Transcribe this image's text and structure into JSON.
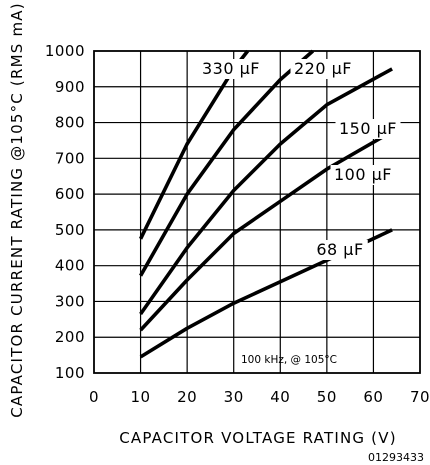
{
  "chart_data": {
    "type": "line",
    "xlabel": "CAPACITOR VOLTAGE RATING (V)",
    "ylabel": "CAPACITOR CURRENT RATING @105°C (RMS mA)",
    "xlim": [
      0,
      70
    ],
    "ylim": [
      100,
      1000
    ],
    "x_ticks": [
      "0",
      "10",
      "20",
      "30",
      "40",
      "50",
      "60",
      "70"
    ],
    "y_ticks": [
      "100",
      "200",
      "300",
      "400",
      "500",
      "600",
      "700",
      "800",
      "900",
      "1000"
    ],
    "grid": true,
    "annotation": "100 kHz, @ 105°C",
    "figure_code": "01293433",
    "series": [
      {
        "name": "330 μF",
        "points": [
          [
            10,
            475
          ],
          [
            20,
            740
          ],
          [
            30,
            950
          ],
          [
            33,
            1000
          ]
        ]
      },
      {
        "name": "220 μF",
        "points": [
          [
            10,
            372
          ],
          [
            20,
            600
          ],
          [
            30,
            780
          ],
          [
            40,
            920
          ],
          [
            47,
            1000
          ]
        ]
      },
      {
        "name": "150 μF",
        "points": [
          [
            10,
            265
          ],
          [
            20,
            450
          ],
          [
            30,
            610
          ],
          [
            40,
            740
          ],
          [
            50,
            850
          ],
          [
            64,
            950
          ]
        ]
      },
      {
        "name": "100 μF",
        "points": [
          [
            10,
            220
          ],
          [
            20,
            360
          ],
          [
            30,
            490
          ],
          [
            40,
            580
          ],
          [
            50,
            670
          ],
          [
            64,
            775
          ]
        ]
      },
      {
        "name": "68 μF",
        "points": [
          [
            10,
            145
          ],
          [
            20,
            225
          ],
          [
            30,
            295
          ],
          [
            40,
            355
          ],
          [
            50,
            415
          ],
          [
            64,
            500
          ]
        ]
      }
    ]
  }
}
